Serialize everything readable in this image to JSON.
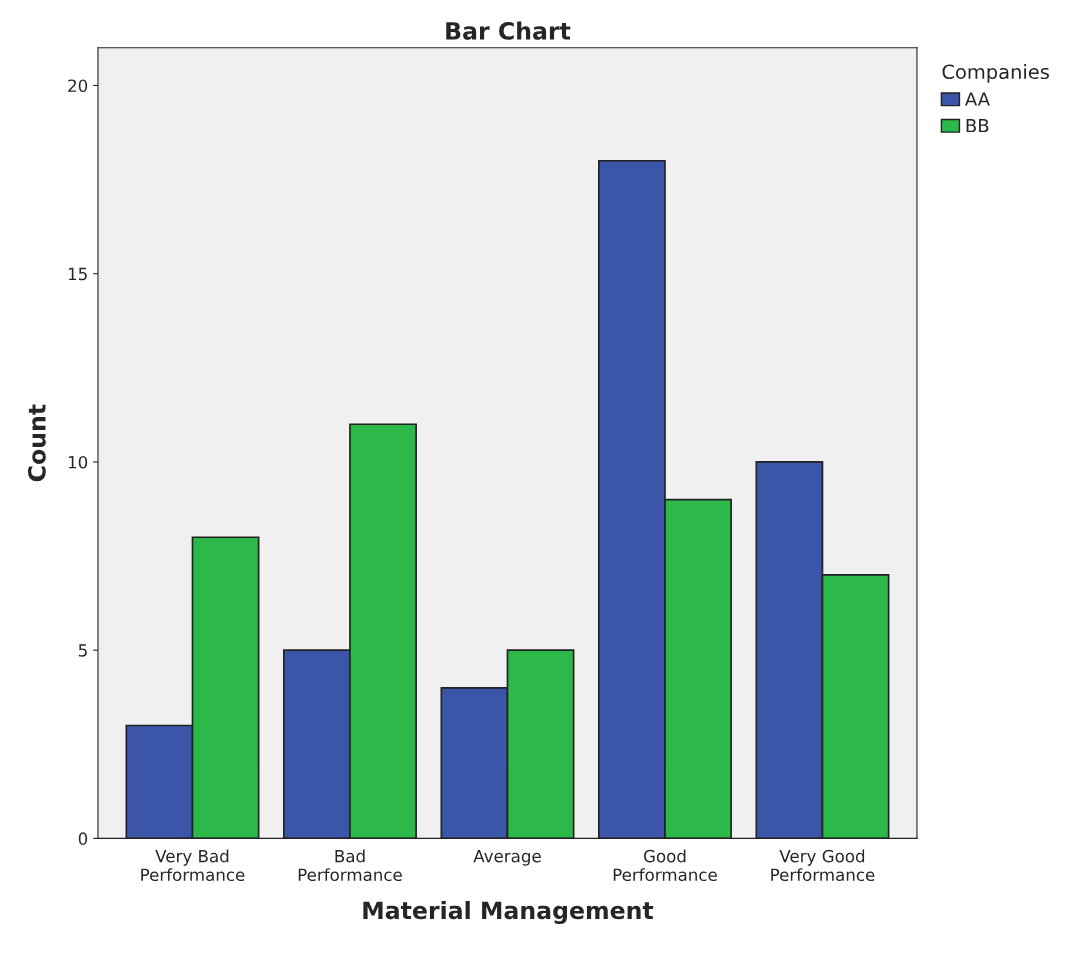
{
  "chart_data": {
    "type": "bar",
    "title": "Bar Chart",
    "xlabel": "Material Management",
    "ylabel": "Count",
    "legend_title": "Companies",
    "categories": [
      "Very Bad\nPerformance",
      "Bad\nPerformance",
      "Average",
      "Good\nPerformance",
      "Very Good\nPerformance"
    ],
    "series": [
      {
        "name": "AA",
        "color": "#3b56a8",
        "values": [
          3,
          5,
          4,
          18,
          10
        ]
      },
      {
        "name": "BB",
        "color": "#2db84a",
        "values": [
          8,
          11,
          5,
          9,
          7
        ]
      }
    ],
    "ylim": [
      0,
      21
    ],
    "yticks": [
      0,
      5,
      10,
      15,
      20
    ],
    "grid": false,
    "legend": "top right"
  }
}
